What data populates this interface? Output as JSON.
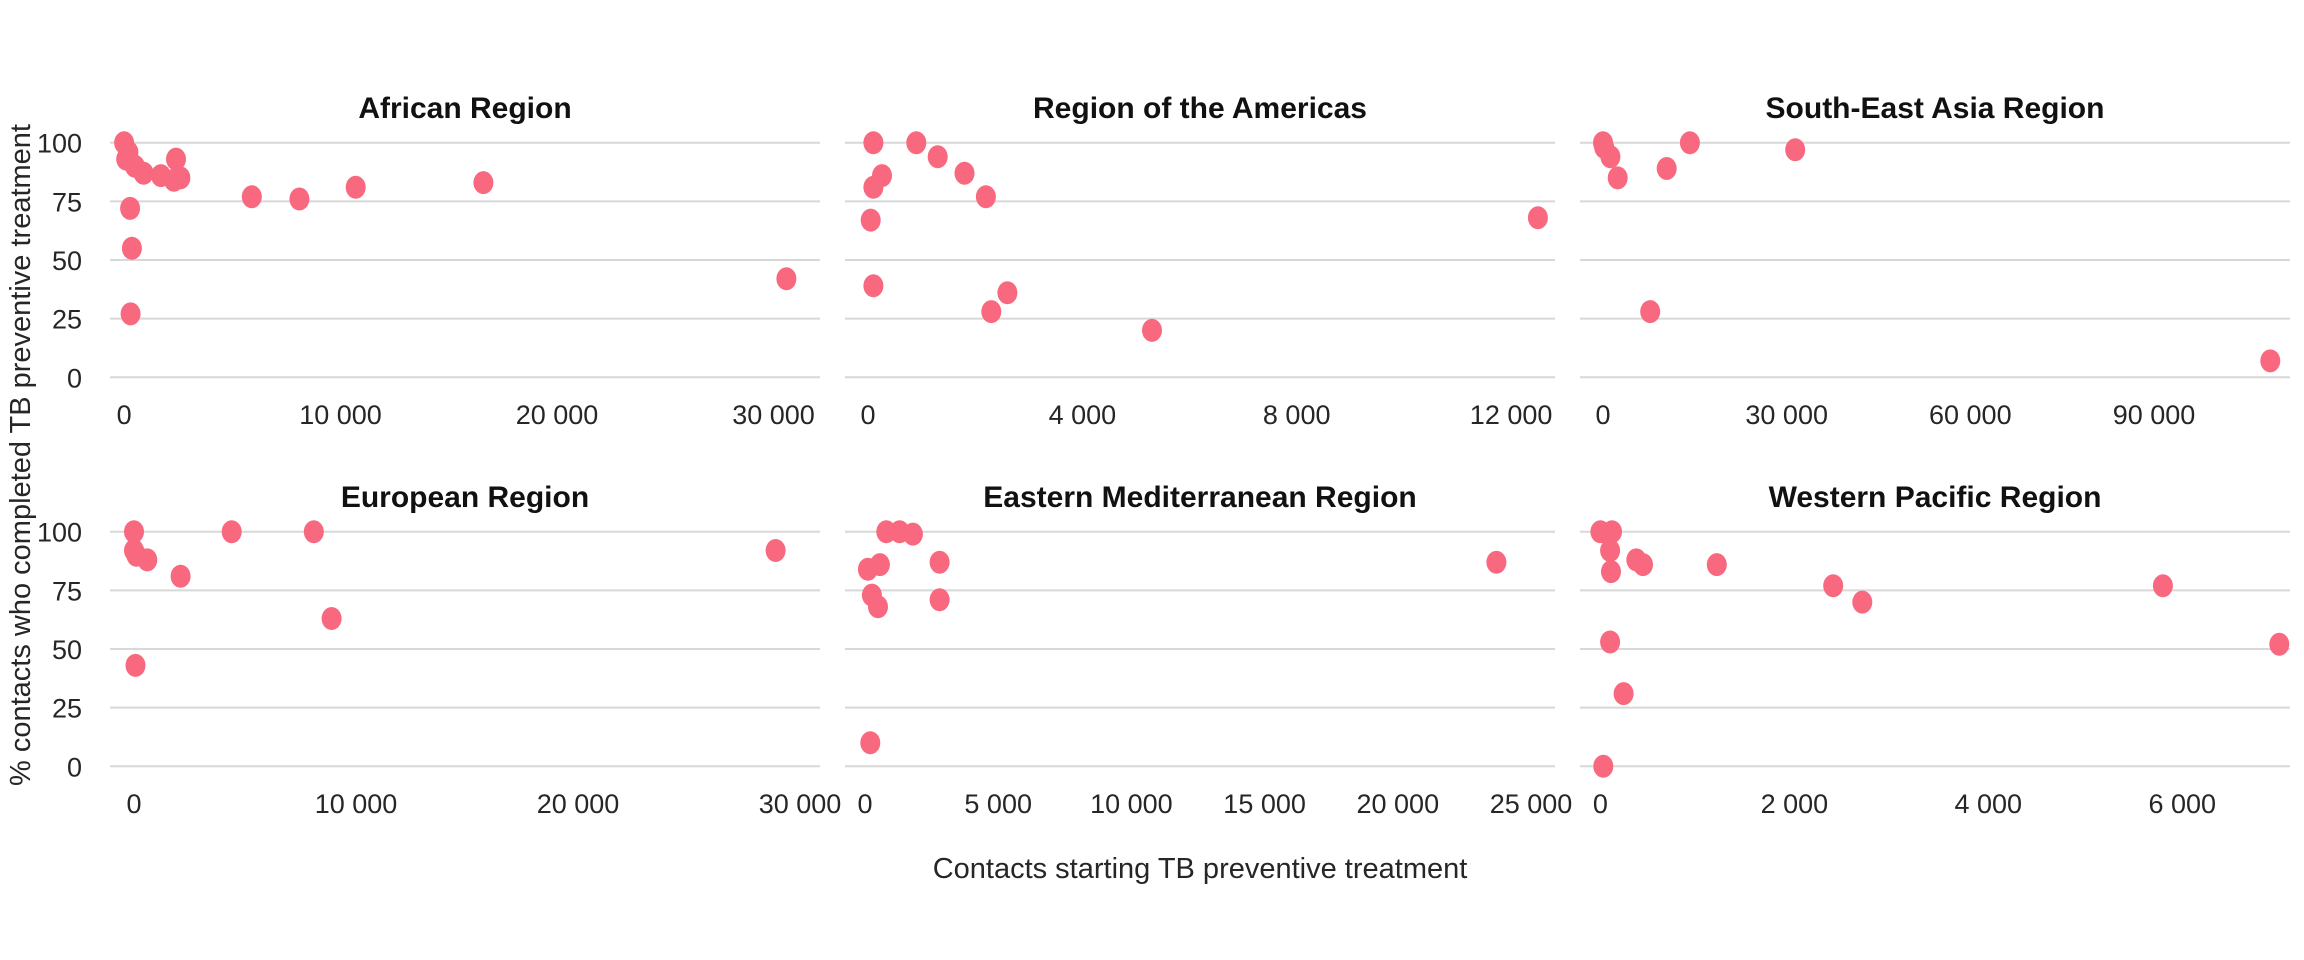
{
  "figure": {
    "background": "#ffffff"
  },
  "chart_data": {
    "type": "scatter",
    "title": "",
    "xlabel": "Contacts starting TB preventive treatment",
    "ylabel": "% contacts who completed TB preventive treatment",
    "legend": "none",
    "grid": "horizontal-only",
    "point_color": "#f8697f",
    "grid_color": "#d8d8d8",
    "text_color": "#262626",
    "title_color": "#111111",
    "y_domain": [
      -5,
      105
    ],
    "y_ticks": [
      {
        "v": 0,
        "label": "0"
      },
      {
        "v": 25,
        "label": "25"
      },
      {
        "v": 50,
        "label": "50"
      },
      {
        "v": 75,
        "label": "75"
      },
      {
        "v": 100,
        "label": "100"
      }
    ],
    "panels": [
      {
        "title": "African Region",
        "row": 0,
        "col": 0,
        "x_domain": [
          -650,
          32150
        ],
        "x_ticks": [
          {
            "v": 0,
            "label": "0"
          },
          {
            "v": 10000,
            "label": "10 000"
          },
          {
            "v": 20000,
            "label": "20 000"
          },
          {
            "v": 30000,
            "label": "30 000"
          }
        ],
        "points": [
          [
            0,
            100
          ],
          [
            200,
            96
          ],
          [
            100,
            93
          ],
          [
            500,
            90
          ],
          [
            900,
            87
          ],
          [
            1700,
            86
          ],
          [
            2300,
            84
          ],
          [
            2400,
            93
          ],
          [
            2600,
            85
          ],
          [
            280,
            72
          ],
          [
            360,
            55
          ],
          [
            300,
            27
          ],
          [
            5900,
            77
          ],
          [
            8100,
            76
          ],
          [
            10700,
            81
          ],
          [
            16600,
            83
          ],
          [
            30600,
            42
          ]
        ]
      },
      {
        "title": "Region of the Americas",
        "row": 0,
        "col": 1,
        "x_domain": [
          -430,
          12820
        ],
        "x_ticks": [
          {
            "v": 0,
            "label": "0"
          },
          {
            "v": 4000,
            "label": "4 000"
          },
          {
            "v": 8000,
            "label": "8 000"
          },
          {
            "v": 12000,
            "label": "12 000"
          }
        ],
        "points": [
          [
            100,
            100
          ],
          [
            900,
            100
          ],
          [
            1300,
            94
          ],
          [
            1800,
            87
          ],
          [
            260,
            86
          ],
          [
            100,
            81
          ],
          [
            50,
            67
          ],
          [
            12500,
            68
          ],
          [
            2200,
            77
          ],
          [
            100,
            39
          ],
          [
            2600,
            36
          ],
          [
            2300,
            28
          ],
          [
            5300,
            20
          ]
        ]
      },
      {
        "title": "South-East Asia Region",
        "row": 0,
        "col": 2,
        "x_domain": [
          -3760,
          112220
        ],
        "x_ticks": [
          {
            "v": 0,
            "label": "0"
          },
          {
            "v": 30000,
            "label": "30 000"
          },
          {
            "v": 60000,
            "label": "60 000"
          },
          {
            "v": 90000,
            "label": "90 000"
          }
        ],
        "points": [
          [
            0,
            100
          ],
          [
            200,
            98
          ],
          [
            1200,
            94
          ],
          [
            2400,
            85
          ],
          [
            10400,
            89
          ],
          [
            14200,
            100
          ],
          [
            31400,
            97
          ],
          [
            7700,
            28
          ],
          [
            109000,
            7
          ]
        ]
      },
      {
        "title": "European Region",
        "row": 1,
        "col": 0,
        "x_domain": [
          -1080,
          30900
        ],
        "x_ticks": [
          {
            "v": 0,
            "label": "0"
          },
          {
            "v": 10000,
            "label": "10 000"
          },
          {
            "v": 20000,
            "label": "20 000"
          },
          {
            "v": 30000,
            "label": "30 000"
          }
        ],
        "points": [
          [
            0,
            100
          ],
          [
            4400,
            100
          ],
          [
            8100,
            100
          ],
          [
            28900,
            92
          ],
          [
            0,
            92
          ],
          [
            110,
            90
          ],
          [
            600,
            88
          ],
          [
            2100,
            81
          ],
          [
            8900,
            63
          ],
          [
            70,
            43
          ]
        ]
      },
      {
        "title": "Eastern Mediterranean Region",
        "row": 1,
        "col": 1,
        "x_domain": [
          -750,
          25900
        ],
        "x_ticks": [
          {
            "v": 0,
            "label": "0"
          },
          {
            "v": 5000,
            "label": "5 000"
          },
          {
            "v": 10000,
            "label": "10 000"
          },
          {
            "v": 15000,
            "label": "15 000"
          },
          {
            "v": 20000,
            "label": "20 000"
          },
          {
            "v": 25000,
            "label": "25 000"
          }
        ],
        "points": [
          [
            800,
            100
          ],
          [
            1300,
            100
          ],
          [
            1800,
            99
          ],
          [
            110,
            84
          ],
          [
            560,
            86
          ],
          [
            2800,
            87
          ],
          [
            260,
            73
          ],
          [
            490,
            68
          ],
          [
            2800,
            71
          ],
          [
            200,
            10
          ],
          [
            23700,
            87
          ]
        ]
      },
      {
        "title": "Western Pacific Region",
        "row": 1,
        "col": 2,
        "x_domain": [
          -210,
          7110
        ],
        "x_ticks": [
          {
            "v": 0,
            "label": "0"
          },
          {
            "v": 2000,
            "label": "2 000"
          },
          {
            "v": 4000,
            "label": "4 000"
          },
          {
            "v": 6000,
            "label": "6 000"
          }
        ],
        "points": [
          [
            0,
            100
          ],
          [
            120,
            100
          ],
          [
            100,
            92
          ],
          [
            110,
            83
          ],
          [
            370,
            88
          ],
          [
            440,
            86
          ],
          [
            1200,
            86
          ],
          [
            2400,
            77
          ],
          [
            2700,
            70
          ],
          [
            5800,
            77
          ],
          [
            100,
            53
          ],
          [
            7000,
            52
          ],
          [
            240,
            31
          ],
          [
            30,
            0
          ]
        ]
      }
    ]
  }
}
